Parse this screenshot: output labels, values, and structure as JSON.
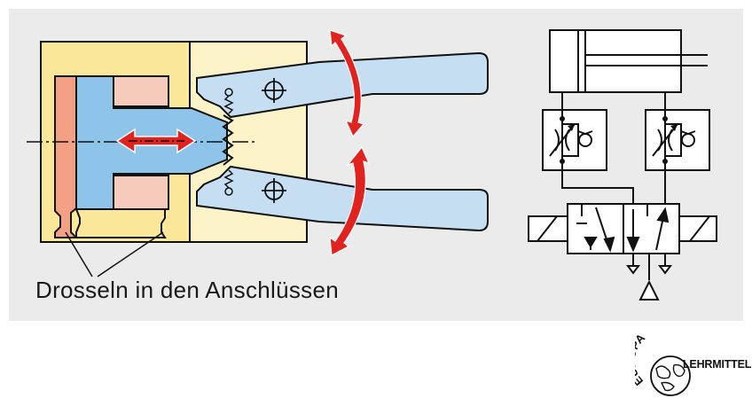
{
  "figure": {
    "caption": "Drosseln in den Anschlüssen"
  },
  "logo": {
    "top_text": "EUROPA",
    "side_text": "LEHRMITTEL"
  },
  "colors": {
    "panel_bg": "#ebebeb",
    "housing_yellow": "#fbe79a",
    "housing_light": "#fdf3c8",
    "jaw_blue": "#c6def2",
    "piston_blue": "#8fc4ea",
    "chamber_salmon": "#f4a084",
    "chamber_pink": "#f7cbbb",
    "arrow_red": "#e1231f",
    "outline": "#111111"
  }
}
